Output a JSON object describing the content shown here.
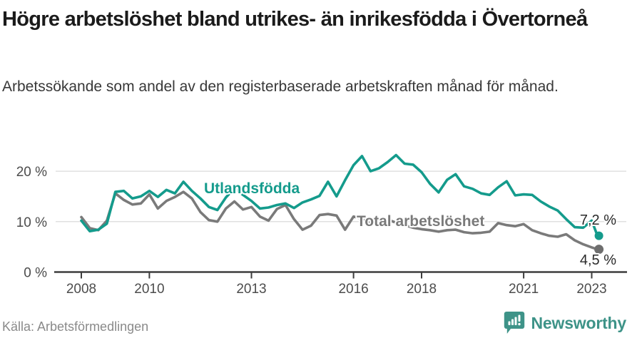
{
  "header": {
    "title": "Högre arbetslöshet bland utrikes- än inrikesfödda i Övertorneå",
    "subtitle": "Arbetssökande som andel av den registerbaserade arbetskraften månad för månad."
  },
  "footer": {
    "source": "Källa: Arbetsförmedlingen",
    "brand": "Newsworthy",
    "brand_icon": "speech-bubble-bar-chart-icon"
  },
  "colors": {
    "series_foreign": "#149b8c",
    "series_total": "#7a7a7a",
    "total_dot": "#6e6e6e",
    "axis_line": "#3d3d3d",
    "grid_line": "#e0e0e0",
    "tick_text": "#4c4c4c",
    "end_label_text": "#2a2a2a",
    "brand_teal": "#3e9388"
  },
  "chart_data": {
    "type": "line",
    "title": "Högre arbetslöshet bland utrikes- än inrikesfödda i Övertorneå",
    "subtitle": "Arbetssökande som andel av den registerbaserade arbetskraften månad för månad.",
    "xlabel": "",
    "ylabel": "",
    "grid": "horizontal",
    "legend_position": "inline-labels",
    "xlim": [
      2007.8,
      2023.6
    ],
    "ylim": [
      0,
      25.5
    ],
    "xticks": [
      2008,
      2010,
      2013,
      2016,
      2018,
      2021,
      2023
    ],
    "xtick_labels": [
      "2008",
      "2010",
      "2013",
      "2016",
      "2018",
      "2021",
      "2023"
    ],
    "yticks": [
      0,
      10,
      20
    ],
    "ytick_labels": [
      "0 %",
      "10 %",
      "20 %"
    ],
    "x": [
      2008.0,
      2008.25,
      2008.5,
      2008.75,
      2009.0,
      2009.25,
      2009.5,
      2009.75,
      2010.0,
      2010.25,
      2010.5,
      2010.75,
      2011.0,
      2011.25,
      2011.5,
      2011.75,
      2012.0,
      2012.25,
      2012.5,
      2012.75,
      2013.0,
      2013.25,
      2013.5,
      2013.75,
      2014.0,
      2014.25,
      2014.5,
      2014.75,
      2015.0,
      2015.25,
      2015.5,
      2015.75,
      2016.0,
      2016.25,
      2016.5,
      2016.75,
      2017.0,
      2017.25,
      2017.5,
      2017.75,
      2018.0,
      2018.25,
      2018.5,
      2018.75,
      2019.0,
      2019.25,
      2019.5,
      2019.75,
      2020.0,
      2020.25,
      2020.5,
      2020.75,
      2021.0,
      2021.25,
      2021.5,
      2021.75,
      2022.0,
      2022.25,
      2022.5,
      2022.75,
      2023.0,
      2023.17
    ],
    "series": [
      {
        "name": "Total arbetslöshet",
        "color": "#7a7a7a",
        "end_label": "4,5 %",
        "end_value": 4.5,
        "values": [
          10.9,
          8.7,
          8.3,
          10.2,
          15.6,
          14.3,
          13.4,
          13.6,
          15.4,
          12.6,
          14.1,
          14.9,
          15.9,
          14.6,
          11.9,
          10.3,
          10.0,
          12.6,
          14.0,
          12.4,
          12.9,
          11.0,
          10.2,
          12.5,
          13.3,
          10.5,
          8.4,
          9.2,
          11.3,
          11.5,
          11.2,
          8.4,
          11.0,
          10.6,
          9.6,
          10.0,
          10.4,
          9.8,
          9.3,
          8.8,
          8.5,
          8.3,
          8.0,
          8.3,
          8.4,
          7.9,
          7.7,
          7.8,
          8.0,
          9.7,
          9.3,
          9.1,
          9.5,
          8.3,
          7.7,
          7.2,
          7.0,
          7.5,
          6.3,
          5.5,
          4.9,
          4.5
        ]
      },
      {
        "name": "Utlandsfödda",
        "color": "#149b8c",
        "end_label": "7,2 %",
        "end_value": 7.2,
        "values": [
          10.2,
          8.1,
          8.4,
          9.6,
          15.9,
          16.1,
          14.6,
          15.0,
          16.1,
          14.9,
          16.3,
          15.6,
          17.9,
          16.1,
          14.6,
          12.9,
          12.3,
          14.8,
          16.6,
          15.3,
          14.1,
          12.6,
          12.8,
          13.3,
          13.6,
          12.7,
          13.8,
          14.4,
          15.1,
          17.9,
          15.0,
          18.2,
          21.2,
          23.0,
          20.0,
          20.6,
          21.8,
          23.2,
          21.5,
          21.3,
          19.8,
          17.5,
          15.8,
          18.3,
          19.4,
          17.0,
          16.5,
          15.6,
          15.3,
          16.8,
          18.0,
          15.2,
          15.4,
          15.3,
          14.0,
          13.0,
          12.2,
          10.5,
          8.9,
          8.8,
          10.2,
          7.2
        ]
      }
    ],
    "series_label_positions": [
      {
        "name": "Total arbetslöshet",
        "x": 500,
        "y": 317,
        "anchor": "start"
      },
      {
        "name": "Utlandsfödda",
        "x": 286,
        "y": 271,
        "anchor": "start"
      }
    ]
  }
}
